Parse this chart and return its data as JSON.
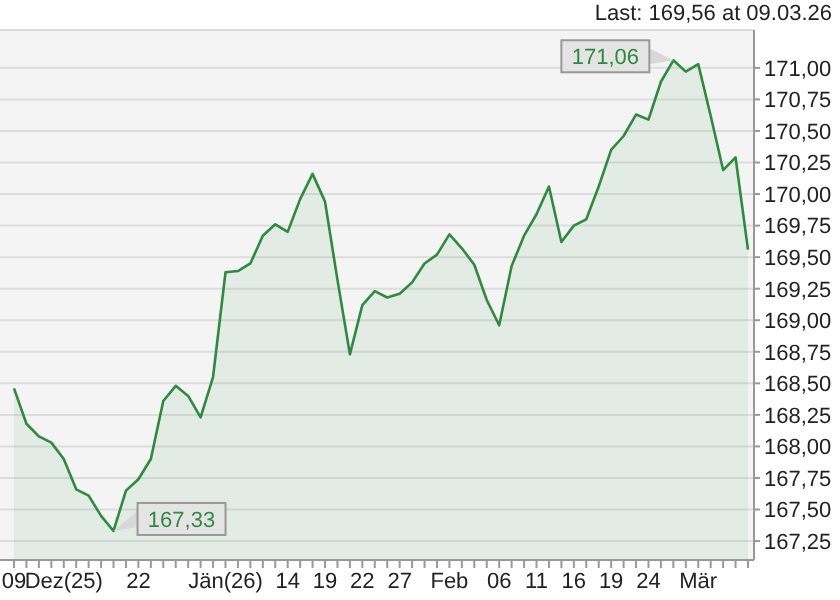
{
  "chart_data": {
    "type": "area",
    "categories": [
      "09",
      null,
      null,
      null,
      "Dez(25)",
      null,
      null,
      null,
      null,
      null,
      "22",
      null,
      null,
      null,
      null,
      null,
      null,
      "Jän(26)",
      null,
      null,
      null,
      null,
      "14",
      null,
      null,
      "19",
      null,
      null,
      "22",
      null,
      null,
      "27",
      null,
      null,
      null,
      "Feb",
      null,
      null,
      null,
      "06",
      null,
      null,
      "11",
      null,
      null,
      "16",
      null,
      null,
      "19",
      null,
      null,
      "24",
      null,
      null,
      null,
      "Mär",
      null,
      null,
      null,
      null
    ],
    "series": [
      {
        "color": "#2e8b3e",
        "values": [
          168.46,
          168.18,
          168.08,
          168.03,
          167.9,
          167.66,
          167.61,
          167.45,
          167.33,
          167.65,
          167.74,
          167.9,
          168.36,
          168.48,
          168.4,
          168.23,
          168.55,
          169.38,
          169.39,
          169.45,
          169.67,
          169.76,
          169.7,
          169.96,
          170.16,
          169.94,
          169.32,
          168.73,
          169.12,
          169.23,
          169.18,
          169.21,
          169.3,
          169.45,
          169.52,
          169.68,
          169.57,
          169.44,
          169.16,
          168.96,
          169.43,
          169.67,
          169.84,
          170.06,
          169.62,
          169.75,
          169.8,
          170.06,
          170.35,
          170.46,
          170.63,
          170.59,
          170.89,
          171.06,
          170.97,
          171.03,
          170.62,
          170.19,
          170.29,
          169.56
        ]
      }
    ],
    "ylim": [
      167.1,
      171.3
    ],
    "yticks": [
      {
        "value": 167.25,
        "label": "167,25"
      },
      {
        "value": 167.5,
        "label": "167,50"
      },
      {
        "value": 167.75,
        "label": "167,75"
      },
      {
        "value": 168,
        "label": "168,00"
      },
      {
        "value": 168.25,
        "label": "168,25"
      },
      {
        "value": 168.5,
        "label": "168,50"
      },
      {
        "value": 168.75,
        "label": "168,75"
      },
      {
        "value": 169,
        "label": "169,00"
      },
      {
        "value": 169.25,
        "label": "169,25"
      },
      {
        "value": 169.5,
        "label": "169,50"
      },
      {
        "value": 169.75,
        "label": "169,75"
      },
      {
        "value": 170,
        "label": "170,00"
      },
      {
        "value": 170.25,
        "label": "170,25"
      },
      {
        "value": 170.5,
        "label": "170,50"
      },
      {
        "value": 170.75,
        "label": "170,75"
      },
      {
        "value": 171,
        "label": "171,00"
      }
    ],
    "grid": "y",
    "annotations": [
      "Last: 169,56 at 09.03.26",
      "171,06",
      "167,33"
    ]
  }
}
